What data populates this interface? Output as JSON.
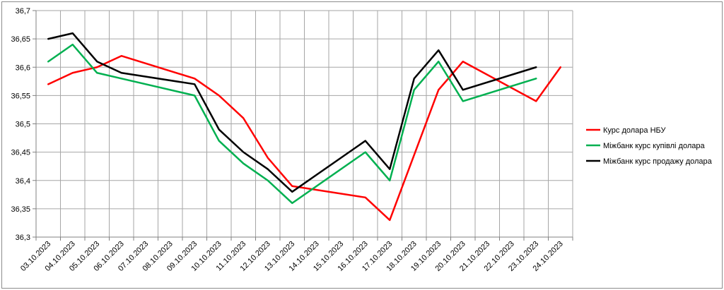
{
  "chart_data": {
    "type": "line",
    "title": "",
    "xlabel": "",
    "ylabel": "",
    "ylim": [
      36.3,
      36.7
    ],
    "ytick_step": 0.05,
    "grid": true,
    "legend_position": "right",
    "categories": [
      "03.10.2023",
      "04.10.2023",
      "05.10.2023",
      "06.10.2023",
      "07.10.2023",
      "08.10.2023",
      "09.10.2023",
      "10.10.2023",
      "11.10.2023",
      "12.10.2023",
      "13.10.2023",
      "14.10.2023",
      "15.10.2023",
      "16.10.2023",
      "17.10.2023",
      "18.10.2023",
      "19.10.2023",
      "20.10.2023",
      "21.10.2023",
      "22.10.2023",
      "23.10.2023",
      "24.10.2023"
    ],
    "y_tick_labels": [
      "36,3",
      "36,35",
      "36,4",
      "36,45",
      "36,5",
      "36,55",
      "36,6",
      "36,65",
      "36,7"
    ],
    "series": [
      {
        "name": "Курс долара НБУ",
        "color": "#ff0000",
        "values": [
          36.57,
          36.59,
          36.6,
          36.62,
          null,
          null,
          36.58,
          36.55,
          36.51,
          36.44,
          36.39,
          null,
          null,
          36.37,
          36.33,
          null,
          36.56,
          36.61,
          null,
          null,
          36.54,
          36.6
        ]
      },
      {
        "name": "Міжбанк курс купівлі долара",
        "color": "#00b050",
        "values": [
          36.61,
          36.64,
          36.59,
          36.58,
          null,
          null,
          36.55,
          36.47,
          36.43,
          36.4,
          36.36,
          null,
          null,
          36.45,
          36.4,
          36.56,
          36.61,
          36.54,
          null,
          null,
          36.58,
          null
        ]
      },
      {
        "name": "Міжбанк курс продажу долара",
        "color": "#000000",
        "values": [
          36.65,
          36.66,
          36.61,
          36.59,
          null,
          null,
          36.57,
          36.49,
          36.45,
          36.42,
          36.38,
          null,
          null,
          36.47,
          36.42,
          36.58,
          36.63,
          36.56,
          null,
          null,
          36.6,
          null
        ]
      }
    ]
  }
}
